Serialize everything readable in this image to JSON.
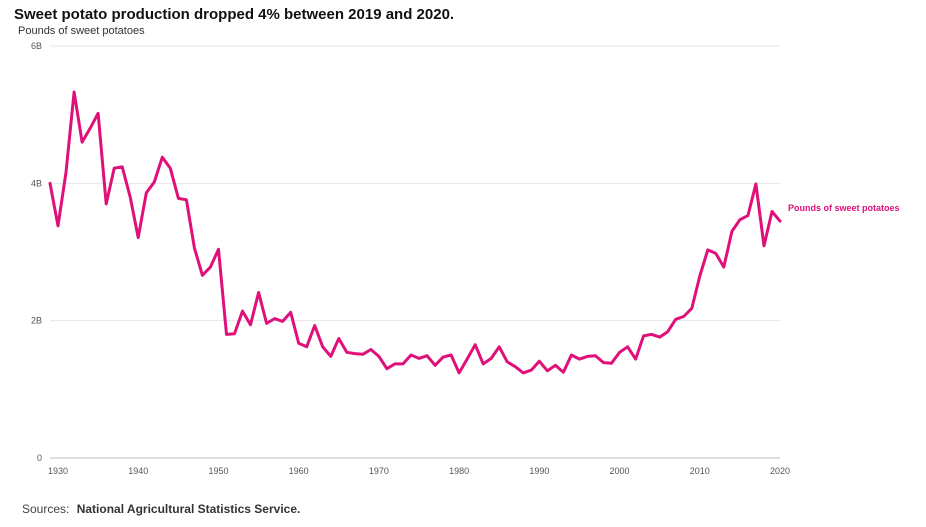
{
  "chart_data": {
    "type": "line",
    "title": "Sweet potato production dropped 4% between 2019 and 2020.",
    "ylabel": "Pounds of sweet potatoes",
    "xlabel": "",
    "xlim": [
      1929,
      2020
    ],
    "ylim": [
      0,
      6000000000
    ],
    "x_ticks": [
      1930,
      1940,
      1950,
      1960,
      1970,
      1980,
      1990,
      2000,
      2010,
      2020
    ],
    "x_tick_labels": [
      "1930",
      "1940",
      "1950",
      "1960",
      "1970",
      "1980",
      "1990",
      "2000",
      "2010",
      "2020"
    ],
    "y_ticks": [
      0,
      2000000000,
      4000000000,
      6000000000
    ],
    "y_tick_labels": [
      "0",
      "2B",
      "4B",
      "6B"
    ],
    "grid": true,
    "color": "#e0107a",
    "series": [
      {
        "name": "Pounds of sweet potatoes",
        "x": [
          1929,
          1930,
          1931,
          1932,
          1933,
          1934,
          1935,
          1936,
          1937,
          1938,
          1939,
          1940,
          1941,
          1942,
          1943,
          1944,
          1945,
          1946,
          1947,
          1948,
          1949,
          1950,
          1951,
          1952,
          1953,
          1954,
          1955,
          1956,
          1957,
          1958,
          1959,
          1960,
          1961,
          1962,
          1963,
          1964,
          1965,
          1966,
          1967,
          1968,
          1969,
          1970,
          1971,
          1972,
          1973,
          1974,
          1975,
          1976,
          1977,
          1978,
          1979,
          1980,
          1981,
          1982,
          1983,
          1984,
          1985,
          1986,
          1987,
          1988,
          1989,
          1990,
          1991,
          1992,
          1993,
          1994,
          1995,
          1996,
          1997,
          1998,
          1999,
          2000,
          2001,
          2002,
          2003,
          2004,
          2005,
          2006,
          2007,
          2008,
          2009,
          2010,
          2011,
          2012,
          2013,
          2014,
          2015,
          2016,
          2017,
          2018,
          2019,
          2020
        ],
        "values": [
          4000000000,
          3380000000,
          4160000000,
          5330000000,
          4600000000,
          4800000000,
          5020000000,
          3700000000,
          4220000000,
          4240000000,
          3800000000,
          3210000000,
          3860000000,
          4020000000,
          4380000000,
          4220000000,
          3780000000,
          3760000000,
          3060000000,
          2660000000,
          2780000000,
          3040000000,
          1800000000,
          1810000000,
          2140000000,
          1940000000,
          2410000000,
          1960000000,
          2030000000,
          1990000000,
          2120000000,
          1670000000,
          1620000000,
          1930000000,
          1620000000,
          1480000000,
          1740000000,
          1540000000,
          1520000000,
          1510000000,
          1580000000,
          1480000000,
          1300000000,
          1370000000,
          1370000000,
          1500000000,
          1450000000,
          1490000000,
          1350000000,
          1470000000,
          1500000000,
          1240000000,
          1440000000,
          1650000000,
          1370000000,
          1450000000,
          1620000000,
          1400000000,
          1330000000,
          1240000000,
          1280000000,
          1410000000,
          1270000000,
          1350000000,
          1250000000,
          1500000000,
          1440000000,
          1480000000,
          1490000000,
          1390000000,
          1380000000,
          1540000000,
          1620000000,
          1440000000,
          1780000000,
          1800000000,
          1760000000,
          1840000000,
          2020000000,
          2060000000,
          2180000000,
          2650000000,
          3030000000,
          2980000000,
          2780000000,
          3300000000,
          3470000000,
          3530000000,
          3990000000,
          3090000000,
          3590000000,
          3450000000
        ]
      }
    ]
  },
  "source": {
    "label": "Sources:",
    "value": "National Agricultural Statistics Service."
  }
}
